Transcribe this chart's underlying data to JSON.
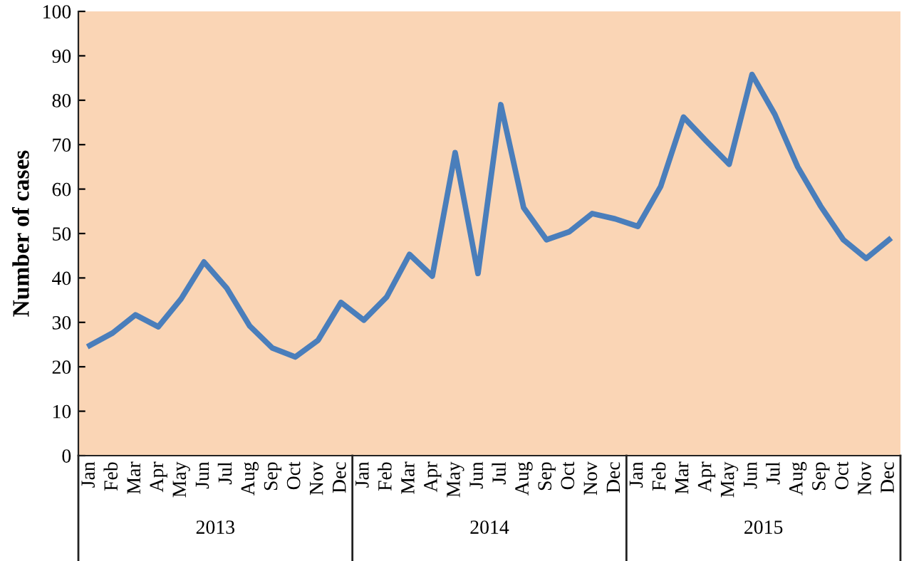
{
  "chart_data": {
    "type": "line",
    "ylabel": "Number of cases",
    "categories": [
      "Jan",
      "Feb",
      "Mar",
      "Apr",
      "May",
      "Jun",
      "Jul",
      "Aug",
      "Sep",
      "Oct",
      "Nov",
      "Dec",
      "Jan",
      "Feb",
      "Mar",
      "Apr",
      "May",
      "Jun",
      "Jul",
      "Aug",
      "Sep",
      "Oct",
      "Nov",
      "Dec",
      "Jan",
      "Feb",
      "Mar",
      "Apr",
      "May",
      "Jun",
      "Jul",
      "Aug",
      "Sep",
      "Oct",
      "Nov",
      "Dec"
    ],
    "series": [
      {
        "color": "#4a7ebb",
        "values": [
          24.8,
          27.6,
          31.7,
          29,
          35.3,
          43.6,
          37.7,
          29.2,
          24.2,
          22.2,
          26,
          34.5,
          30.5,
          35.7,
          45.3,
          40.4,
          68.2,
          41,
          79,
          55.8,
          48.6,
          50.4,
          54.5,
          53.3,
          51.6,
          60.6,
          76.2,
          70.8,
          65.6,
          85.8,
          76.8,
          65,
          56.2,
          48.6,
          44.4,
          48.6
        ]
      }
    ],
    "annotations": [
      "2013",
      "2014",
      "2015"
    ],
    "ylim": [
      0,
      100
    ],
    "yticks": [
      0,
      10,
      20,
      30,
      40,
      50,
      60,
      70,
      80,
      90,
      100
    ],
    "grid": false,
    "legend": false,
    "marker": "none",
    "line_style": "solid"
  }
}
